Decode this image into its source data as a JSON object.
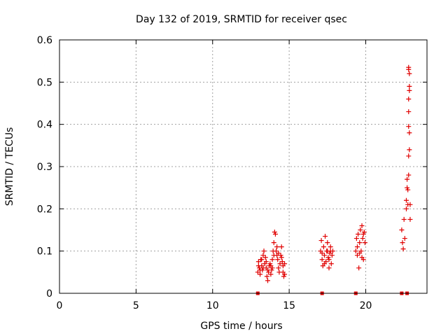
{
  "chart_data": {
    "type": "scatter",
    "title": "Day 132 of 2019, SRMTID for receiver qsec",
    "xlabel": "GPS time / hours",
    "ylabel": "SRMTID / TECUs",
    "xlim": [
      0,
      24
    ],
    "ylim": [
      0,
      0.6
    ],
    "xticks": [
      0,
      5,
      10,
      15,
      20
    ],
    "yticks": [
      0,
      0.1,
      0.2,
      0.3,
      0.4,
      0.5,
      0.6
    ],
    "xtick_labels": [
      "0",
      "5",
      "10",
      "15",
      "20"
    ],
    "ytick_labels": [
      "0",
      "0.1",
      "0.2",
      "0.3",
      "0.4",
      "0.5",
      "0.6"
    ],
    "grid": true,
    "marker": "plus",
    "color": "#e00000",
    "series": [
      {
        "name": "SRMTID",
        "points": [
          [
            12.95,
            0.05
          ],
          [
            13.0,
            0.075
          ],
          [
            13.05,
            0.06
          ],
          [
            13.1,
            0.045
          ],
          [
            13.15,
            0.08
          ],
          [
            13.2,
            0.065
          ],
          [
            13.25,
            0.055
          ],
          [
            13.3,
            0.09
          ],
          [
            13.35,
            0.1
          ],
          [
            13.4,
            0.07
          ],
          [
            13.45,
            0.085
          ],
          [
            13.5,
            0.06
          ],
          [
            13.55,
            0.04
          ],
          [
            13.6,
            0.03
          ],
          [
            13.65,
            0.05
          ],
          [
            13.7,
            0.065
          ],
          [
            13.75,
            0.07
          ],
          [
            13.8,
            0.045
          ],
          [
            13.85,
            0.055
          ],
          [
            13.9,
            0.08
          ],
          [
            13.95,
            0.1
          ],
          [
            14.0,
            0.12
          ],
          [
            14.05,
            0.145
          ],
          [
            14.1,
            0.14
          ],
          [
            14.15,
            0.1
          ],
          [
            14.2,
            0.09
          ],
          [
            14.25,
            0.08
          ],
          [
            14.3,
            0.06
          ],
          [
            14.35,
            0.05
          ],
          [
            14.4,
            0.07
          ],
          [
            14.45,
            0.09
          ],
          [
            14.5,
            0.11
          ],
          [
            14.55,
            0.075
          ],
          [
            14.6,
            0.05
          ],
          [
            14.65,
            0.04
          ],
          [
            14.7,
            0.07
          ],
          [
            13.0,
            0.065
          ],
          [
            13.1,
            0.055
          ],
          [
            13.2,
            0.08
          ],
          [
            13.3,
            0.06
          ],
          [
            13.5,
            0.075
          ],
          [
            13.6,
            0.055
          ],
          [
            13.8,
            0.065
          ],
          [
            13.9,
            0.06
          ],
          [
            14.0,
            0.09
          ],
          [
            14.2,
            0.11
          ],
          [
            14.3,
            0.095
          ],
          [
            14.5,
            0.085
          ],
          [
            14.6,
            0.065
          ],
          [
            14.7,
            0.045
          ],
          [
            17.05,
            0.1
          ],
          [
            17.1,
            0.125
          ],
          [
            17.15,
            0.08
          ],
          [
            17.2,
            0.065
          ],
          [
            17.25,
            0.11
          ],
          [
            17.3,
            0.09
          ],
          [
            17.35,
            0.135
          ],
          [
            17.4,
            0.075
          ],
          [
            17.45,
            0.1
          ],
          [
            17.5,
            0.12
          ],
          [
            17.55,
            0.085
          ],
          [
            17.6,
            0.06
          ],
          [
            17.65,
            0.095
          ],
          [
            17.7,
            0.11
          ],
          [
            17.75,
            0.07
          ],
          [
            17.8,
            0.09
          ],
          [
            17.85,
            0.1
          ],
          [
            17.15,
            0.095
          ],
          [
            17.3,
            0.07
          ],
          [
            17.5,
            0.1
          ],
          [
            17.6,
            0.08
          ],
          [
            17.7,
            0.1
          ],
          [
            19.35,
            0.1
          ],
          [
            19.4,
            0.13
          ],
          [
            19.45,
            0.09
          ],
          [
            19.5,
            0.14
          ],
          [
            19.55,
            0.06
          ],
          [
            19.6,
            0.12
          ],
          [
            19.65,
            0.15
          ],
          [
            19.7,
            0.1
          ],
          [
            19.75,
            0.16
          ],
          [
            19.8,
            0.13
          ],
          [
            19.85,
            0.08
          ],
          [
            19.9,
            0.145
          ],
          [
            19.95,
            0.12
          ],
          [
            19.45,
            0.11
          ],
          [
            19.6,
            0.095
          ],
          [
            19.75,
            0.085
          ],
          [
            19.85,
            0.14
          ],
          [
            22.35,
            0.15
          ],
          [
            22.4,
            0.12
          ],
          [
            22.45,
            0.105
          ],
          [
            22.5,
            0.175
          ],
          [
            22.55,
            0.13
          ],
          [
            22.65,
            0.2
          ],
          [
            22.65,
            0.22
          ],
          [
            22.7,
            0.27
          ],
          [
            22.7,
            0.25
          ],
          [
            22.75,
            0.21
          ],
          [
            22.75,
            0.245
          ],
          [
            22.8,
            0.28
          ],
          [
            22.8,
            0.325
          ],
          [
            22.85,
            0.34
          ],
          [
            22.85,
            0.38
          ],
          [
            22.8,
            0.395
          ],
          [
            22.8,
            0.43
          ],
          [
            22.8,
            0.46
          ],
          [
            22.85,
            0.48
          ],
          [
            22.85,
            0.49
          ],
          [
            22.85,
            0.52
          ],
          [
            22.8,
            0.53
          ],
          [
            22.8,
            0.535
          ],
          [
            22.9,
            0.175
          ],
          [
            22.9,
            0.21
          ]
        ]
      },
      {
        "name": "baseline markers",
        "marker": "square",
        "points": [
          [
            12.95,
            0
          ],
          [
            17.15,
            0
          ],
          [
            19.35,
            0
          ],
          [
            22.35,
            0
          ],
          [
            22.7,
            0
          ]
        ]
      }
    ]
  }
}
